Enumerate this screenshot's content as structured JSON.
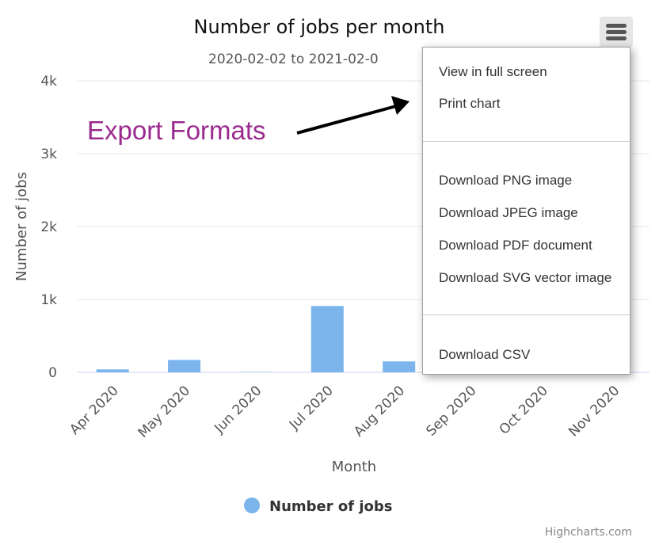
{
  "chart_data": {
    "type": "bar",
    "title": "Number of jobs per month",
    "subtitle": "2020-02-02 to 2021-02-0",
    "xlabel": "Month",
    "ylabel": "Number of jobs",
    "categories": [
      "Apr 2020",
      "May 2020",
      "Jun 2020",
      "Jul 2020",
      "Aug 2020",
      "Sep 2020",
      "Oct 2020",
      "Nov 2020"
    ],
    "series": [
      {
        "name": "Number of jobs",
        "values": [
          40,
          170,
          5,
          910,
          150,
          0,
          0,
          0
        ]
      }
    ],
    "ylim": [
      0,
      4000
    ],
    "yticks": [
      0,
      1000,
      2000,
      3000,
      4000
    ],
    "ytick_labels": [
      "0",
      "1k",
      "2k",
      "3k",
      "4k"
    ],
    "grid": true,
    "legend_position": "bottom",
    "series_color": "#7cb5ec"
  },
  "annotation": {
    "text": "Export Formats",
    "color": "#9b2a8f"
  },
  "credits": "Highcharts.com",
  "menu": {
    "button_icon": "hamburger-menu-icon",
    "groups": [
      [
        "View in full screen",
        "Print chart"
      ],
      [
        "Download PNG image",
        "Download JPEG image",
        "Download PDF document",
        "Download SVG vector image"
      ],
      [
        "Download CSV"
      ]
    ]
  }
}
